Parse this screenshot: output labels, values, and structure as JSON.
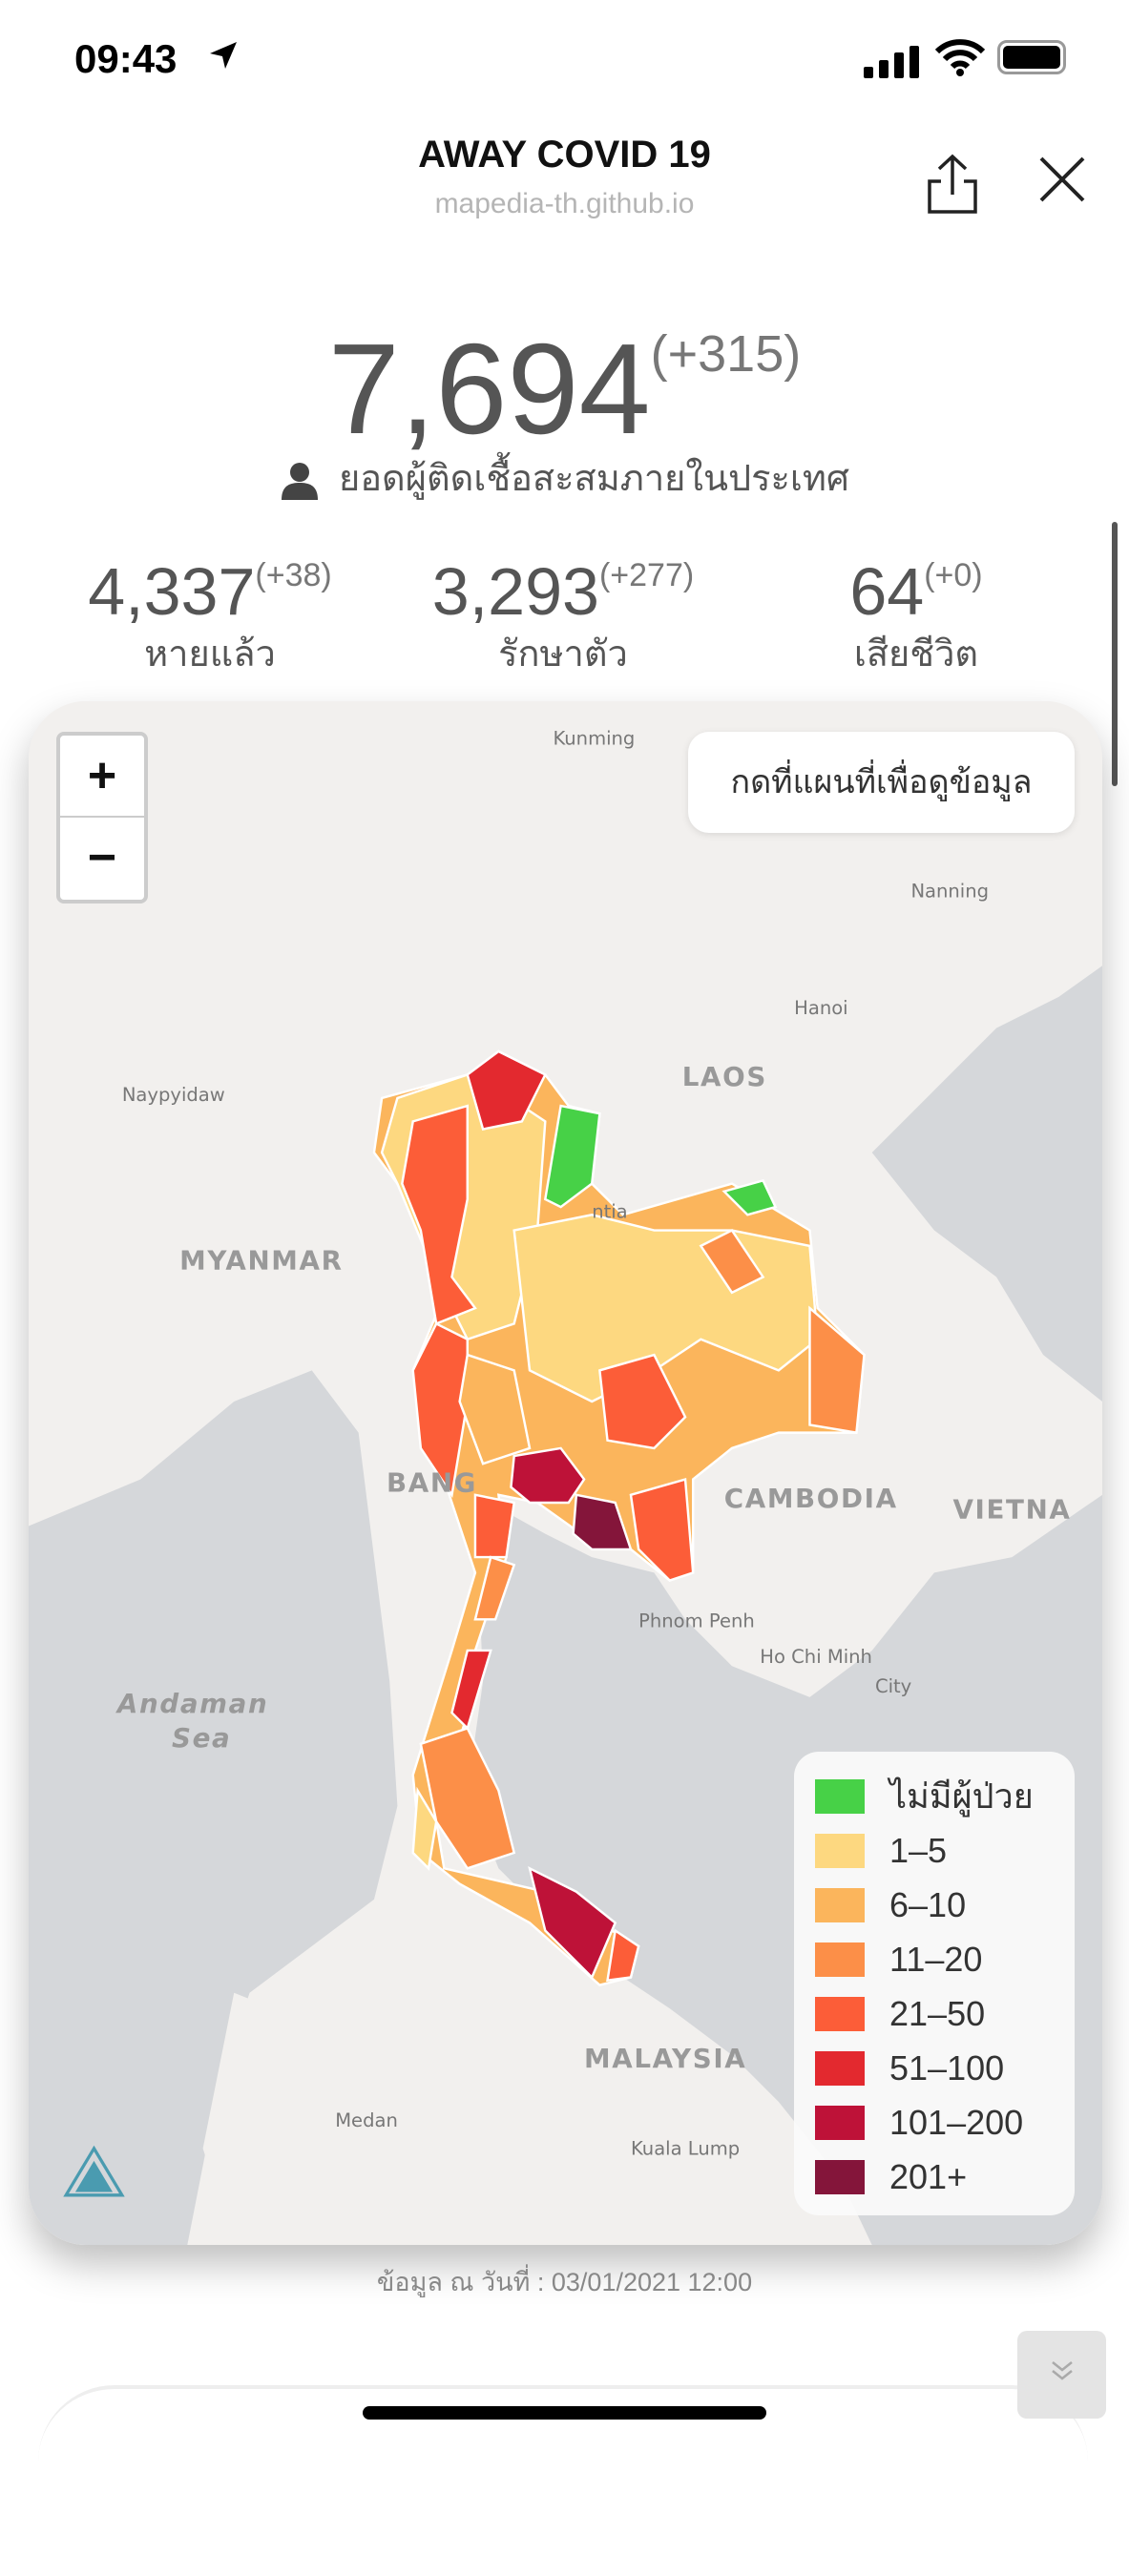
{
  "status_bar": {
    "time": "09:43",
    "icons": [
      "location-arrow-icon",
      "signal-icon",
      "wifi-icon",
      "battery-icon"
    ]
  },
  "header": {
    "title": "AWAY COVID 19",
    "url": "mapedia-th.github.io",
    "icons": [
      "share-icon",
      "close-icon"
    ]
  },
  "summary": {
    "total": "7,694",
    "total_delta": "(+315)",
    "total_label": "ยอดผู้ติดเชื้อสะสมภายในประเทศ",
    "stats": [
      {
        "value": "4,337",
        "delta": "(+38)",
        "label": "หายแล้ว"
      },
      {
        "value": "3,293",
        "delta": "(+277)",
        "label": "รักษาตัว"
      },
      {
        "value": "64",
        "delta": "(+0)",
        "label": "เสียชีวิต"
      }
    ]
  },
  "map": {
    "zoom_in": "+",
    "zoom_out": "−",
    "hint": "กดที่แผนที่เพื่อดูข้อมูล",
    "labels": {
      "kunming": "Kunming",
      "nanning": "Nanning",
      "hanoi": "Hanoi",
      "naypyidaw": "Naypyidaw",
      "laos": "LAOS",
      "myanmar": "MYANMAR",
      "bangkok": "BANG",
      "cambodia": "CAMBODIA",
      "vietnam": "VIETNA",
      "phnom_penh": "Phnom Penh",
      "hcm1": "Ho Chi Minh",
      "hcm2": "City",
      "andaman1": "Andaman",
      "andaman2": "Sea",
      "malaysia": "MALAYSIA",
      "medan": "Medan",
      "kuala_lumpur": "Kuala Lump",
      "vientiane": "ntia"
    },
    "logo": "MAPEDIA",
    "legend": [
      {
        "label": "ไม่มีผู้ป่วย",
        "color": "#47d147"
      },
      {
        "label": "1–5",
        "color": "#fdd880"
      },
      {
        "label": "6–10",
        "color": "#fbb55c"
      },
      {
        "label": "11–20",
        "color": "#fc8f48"
      },
      {
        "label": "21–50",
        "color": "#fc5d38"
      },
      {
        "label": "51–100",
        "color": "#e3292f"
      },
      {
        "label": "101–200",
        "color": "#be1238"
      },
      {
        "label": "201+",
        "color": "#84153a"
      }
    ]
  },
  "footer": {
    "updated": "ข้อมูล ณ วันที่ : 03/01/2021 12:00",
    "scroll_icon": "double-chevron-down-icon"
  }
}
